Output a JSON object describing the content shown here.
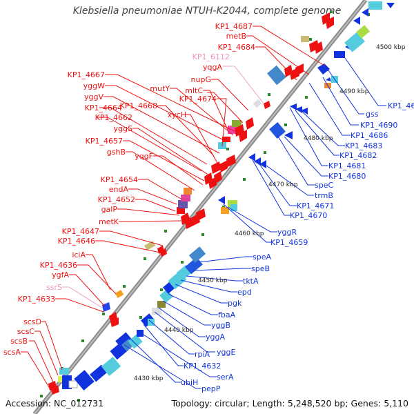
{
  "title": "Klebsiella pneumoniae NTUH-K2044, complete genome",
  "footer": {
    "accession": "Accession: NC_012731",
    "summary": "Topology: circular; Length: 5,248,520 bp; Genes: 5,110"
  },
  "colors": {
    "backbone": "#888888",
    "forward_gene": "#ee1111",
    "reverse_gene": "#1111ee",
    "pseudo_gene": "#f090c0",
    "tick_dot": "#339933"
  },
  "kbp_labels": [
    "4430 kbp",
    "4440 kbp",
    "4450 kbp",
    "4460 kbp",
    "4470 kbp",
    "4480 kbp",
    "4490 kbp",
    "4500 kbp"
  ],
  "genes_left": [
    {
      "label": "KP1_4687",
      "color": "red"
    },
    {
      "label": "metB",
      "color": "red"
    },
    {
      "label": "KP1_4684",
      "color": "red"
    },
    {
      "label": "KP1_6112",
      "color": "pink"
    },
    {
      "label": "yqgA",
      "color": "red"
    },
    {
      "label": "nupG",
      "color": "red"
    },
    {
      "label": "KP1_4667",
      "color": "red"
    },
    {
      "label": "mutY",
      "color": "red"
    },
    {
      "label": "mltC",
      "color": "red"
    },
    {
      "label": "yggW",
      "color": "red"
    },
    {
      "label": "KP1_4674",
      "color": "red"
    },
    {
      "label": "yggV",
      "color": "red"
    },
    {
      "label": "KP1_4668",
      "color": "red"
    },
    {
      "label": "KP1_4664",
      "color": "red"
    },
    {
      "label": "xycH",
      "color": "red"
    },
    {
      "label": "KP1_4662",
      "color": "red"
    },
    {
      "label": "yggS",
      "color": "red"
    },
    {
      "label": "KP1_4657",
      "color": "red"
    },
    {
      "label": "gshB",
      "color": "red"
    },
    {
      "label": "yqgF",
      "color": "red"
    },
    {
      "label": "KP1_4654",
      "color": "red"
    },
    {
      "label": "endA",
      "color": "red"
    },
    {
      "label": "KP1_4652",
      "color": "red"
    },
    {
      "label": "galP",
      "color": "red"
    },
    {
      "label": "metK",
      "color": "red"
    },
    {
      "label": "KP1_4647",
      "color": "red"
    },
    {
      "label": "KP1_4646",
      "color": "red"
    },
    {
      "label": "iciA",
      "color": "red"
    },
    {
      "label": "KP1_4636",
      "color": "red"
    },
    {
      "label": "ygfA",
      "color": "red"
    },
    {
      "label": "ssrS",
      "color": "pink"
    },
    {
      "label": "KP1_4633",
      "color": "red"
    },
    {
      "label": "scsD",
      "color": "red"
    },
    {
      "label": "scsC",
      "color": "red"
    },
    {
      "label": "scsB",
      "color": "red"
    },
    {
      "label": "scsA",
      "color": "red"
    }
  ],
  "genes_right": [
    "KP1_4696",
    "gss",
    "KP1_4690",
    "KP1_4686",
    "KP1_4683",
    "KP1_4682",
    "KP1_4681",
    "KP1_4680",
    "speC",
    "trmB",
    "KP1_4671",
    "KP1_4670",
    "yggR",
    "KP1_4659",
    "speA",
    "speB",
    "tktA",
    "epd",
    "pgk",
    "fbaA",
    "yggB",
    "yggA",
    "yggE",
    "rpiA",
    "KP1_4632",
    "serA",
    "ubiH",
    "pepP"
  ]
}
